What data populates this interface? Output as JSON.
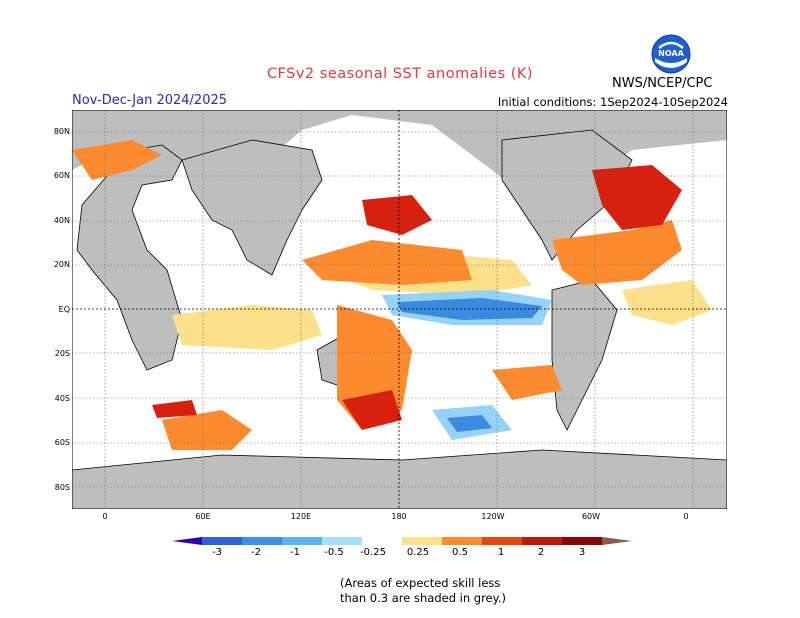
{
  "header": {
    "title": "CFSv2 seasonal SST anomalies (K)",
    "season": "Nov-Dec-Jan 2024/2025",
    "initial_conditions": "Initial conditions: 1Sep2024-10Sep2024",
    "agency": "NWS/NCEP/CPC",
    "logo_text": "NOAA"
  },
  "map": {
    "lat_labels": [
      "80N",
      "60N",
      "40N",
      "20N",
      "EQ",
      "20S",
      "40S",
      "60S",
      "80S"
    ],
    "lon_labels": [
      "0",
      "60E",
      "120E",
      "180",
      "120W",
      "60W",
      "0"
    ],
    "colors": {
      "land": "#bebebe",
      "ocean_neutral": "#ffffff",
      "warm_weak": "#fde08a",
      "warm": "#fb8b2e",
      "warm_strong": "#f55a14",
      "hot": "#d8200f",
      "cool": "#96d2f5",
      "cold": "#3a8be0",
      "coldest": "#1e56c8",
      "coastline": "#000000"
    }
  },
  "colorbar": {
    "tick_labels": [
      "-3",
      "-2",
      "-1",
      "-0.5",
      "-0.25",
      "0.25",
      "0.5",
      "1",
      "2",
      "3"
    ],
    "colors": [
      "#2a00b8",
      "#2e62d8",
      "#3c8ee6",
      "#5bb2f0",
      "#a8e2f8",
      "#ffffff",
      "#fde08a",
      "#fb8b2e",
      "#e5450f",
      "#c01808",
      "#8a0606",
      "#8a5a4a"
    ]
  },
  "footnote": {
    "line1": "(Areas of expected skill less",
    "line2": "than 0.3 are shaded in grey.)"
  }
}
